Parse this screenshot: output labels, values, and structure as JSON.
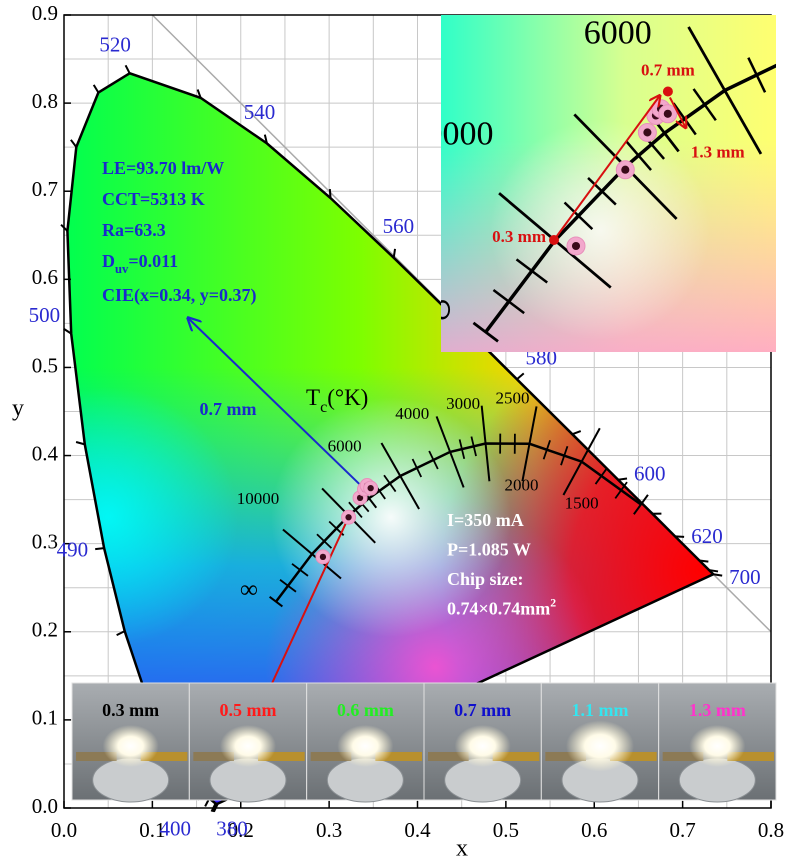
{
  "chart_data": {
    "type": "chromaticity",
    "xlabel": "x",
    "ylabel": "y",
    "xlim": [
      0,
      0.8
    ],
    "ylim": [
      0,
      0.9
    ],
    "xticks": [
      {
        "value": 0,
        "label": "0.0"
      },
      0.1,
      0.2,
      0.3,
      0.4,
      0.5,
      0.6,
      0.7,
      0.8
    ],
    "yticks": [
      {
        "value": 0,
        "label": "0.0"
      },
      0.1,
      0.2,
      0.3,
      0.4,
      0.5,
      0.6,
      0.7,
      0.8,
      0.9
    ],
    "grid": true,
    "xgrid": [
      0,
      0.05,
      0.1,
      0.15,
      0.2,
      0.25,
      0.3,
      0.35,
      0.4,
      0.45,
      0.5,
      0.55,
      0.6,
      0.65,
      0.7,
      0.75,
      0.8
    ],
    "ygrid": [
      0,
      0.05,
      0.1,
      0.15,
      0.2,
      0.25,
      0.3,
      0.35,
      0.4,
      0.45,
      0.5,
      0.55,
      0.6,
      0.65,
      0.7,
      0.75,
      0.8,
      0.85,
      0.9
    ],
    "spectral_locus": {
      "x": [
        0.1741,
        0.1733,
        0.1714,
        0.1644,
        0.1566,
        0.144,
        0.1241,
        0.1096,
        0.0913,
        0.0687,
        0.0454,
        0.0235,
        0.0082,
        0.0039,
        0.0139,
        0.0389,
        0.0743,
        0.1547,
        0.2296,
        0.3016,
        0.3731,
        0.4441,
        0.5125,
        0.5752,
        0.627,
        0.6658,
        0.6915,
        0.719,
        0.73,
        0.7347
      ],
      "y": [
        0.005,
        0.0048,
        0.0051,
        0.0109,
        0.0177,
        0.0297,
        0.0578,
        0.0868,
        0.1327,
        0.2007,
        0.295,
        0.4127,
        0.5384,
        0.6548,
        0.7502,
        0.812,
        0.8338,
        0.8059,
        0.7543,
        0.6923,
        0.6245,
        0.5547,
        0.4866,
        0.4242,
        0.3725,
        0.334,
        0.3083,
        0.2809,
        0.27,
        0.2653
      ],
      "labels": [
        "380",
        "400",
        null,
        null,
        null,
        null,
        null,
        null,
        null,
        null,
        "490",
        null,
        "500",
        null,
        null,
        null,
        "520",
        null,
        "540",
        null,
        "560",
        null,
        "580",
        null,
        "600",
        null,
        "620",
        null,
        null,
        "700"
      ]
    },
    "planckian_locus": {
      "title": {
        "main": "T",
        "sub": "c",
        "rest": "(°K)"
      },
      "x": [
        0.2399,
        0.2806,
        0.3221,
        0.3451,
        0.3805,
        0.4369,
        0.477,
        0.5267,
        0.5857,
        0.6528
      ],
      "y": [
        0.2342,
        0.2883,
        0.3318,
        0.3516,
        0.3768,
        0.4041,
        0.4137,
        0.4133,
        0.3931,
        0.3444
      ],
      "labels": [
        "∞",
        "10000",
        "6000",
        null,
        "4000",
        "3000",
        "2500",
        "2000",
        "1500",
        null
      ]
    },
    "samples": {
      "names": [
        "0.3 mm",
        "0.5 mm",
        "0.6 mm",
        "0.7 mm",
        "1.1 mm",
        "1.3 mm"
      ],
      "label_colors": [
        "#000000",
        "#ff1a1a",
        "#22ee22",
        "#1010cc",
        "#33e6f0",
        "#ff33cc"
      ],
      "x": [
        0.293,
        0.322,
        0.335,
        0.34,
        0.343,
        0.347
      ],
      "y": [
        0.285,
        0.33,
        0.352,
        0.362,
        0.366,
        0.363
      ]
    },
    "properties": [
      "LE=93.70 lm/W",
      "CCT=5313 K",
      "Ra=63.3",
      {
        "main": "D",
        "sub": "uv",
        "rest": "=0.011"
      },
      "CIE(x=0.34, y=0.37)"
    ],
    "conditions": [
      "I=350 mA",
      "P=1.085 W",
      "Chip size:",
      {
        "main": "0.74×0.74mm",
        "sup": "2"
      }
    ]
  }
}
